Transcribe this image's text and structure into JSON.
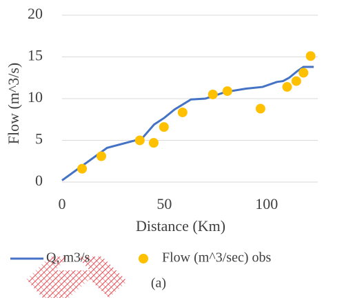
{
  "chart_data": {
    "type": "line",
    "xlabel": "Distance (Km)",
    "ylabel": "Flow (m^3/s)",
    "caption": "(a)",
    "xlim": [
      0,
      125
    ],
    "xticks": [
      0,
      50,
      100
    ],
    "ylim": [
      0,
      20
    ],
    "yticks": [
      0,
      5,
      10,
      15,
      20
    ],
    "grid": true,
    "series": [
      {
        "name": "Q, m3/s",
        "type": "line",
        "color": "#4472c4",
        "x": [
          0,
          22,
          39,
          45,
          50,
          55,
          63,
          70,
          80,
          90,
          98,
          105,
          108,
          111,
          115,
          118,
          123
        ],
        "values": [
          0.2,
          4.1,
          5.2,
          6.9,
          7.7,
          8.7,
          9.9,
          10,
          10.8,
          11.2,
          11.4,
          12,
          12.1,
          12.5,
          13.3,
          13.8,
          13.8
        ]
      },
      {
        "name": "Flow (m^3/sec) obs",
        "type": "scatter",
        "color": "#ffc000",
        "x": [
          9.8,
          19.2,
          38,
          44.8,
          49.8,
          58.9,
          73.7,
          80.8,
          97,
          110,
          114.5,
          118,
          121.5
        ],
        "values": [
          1.6,
          3.1,
          5,
          4.7,
          6.6,
          8.35,
          10.5,
          10.9,
          8.8,
          11.4,
          12.1,
          13.1,
          15.1
        ]
      }
    ]
  }
}
